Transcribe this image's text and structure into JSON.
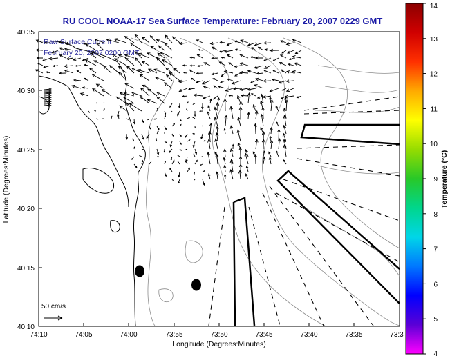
{
  "title": "RU COOL  NOAA-17  Sea Surface Temperature:  February 20, 2007 0229 GMT",
  "overlay": {
    "line1": "Raw Surface Current",
    "line2": "February 20, 2007 0200 GMT"
  },
  "axes": {
    "xlabel": "Longitude (Degrees:Minutes)",
    "ylabel": "Latitude (Degrees:Minutes)",
    "xticks": [
      "74:10",
      "74:05",
      "74:00",
      "73:55",
      "73:50",
      "73:45",
      "73:40",
      "73:35",
      "73:3"
    ],
    "yticks": [
      "40:35",
      "40:30",
      "40:25",
      "40:20",
      "40:15",
      "40:10"
    ]
  },
  "colorbar": {
    "label": "Temperature (°C)",
    "ticks": [
      "14",
      "13",
      "12",
      "11",
      "10",
      "9",
      "8",
      "7",
      "6",
      "5",
      "4"
    ],
    "colors": [
      "#ff00ff",
      "#5a00d6",
      "#0000ff",
      "#0078ff",
      "#00d6e8",
      "#00d68c",
      "#28c828",
      "#96dc00",
      "#ffff00",
      "#ffaa00",
      "#ff3000",
      "#d00000",
      "#8c0000"
    ]
  },
  "scale": {
    "label": "50 cm/s"
  },
  "colors": {
    "title": "#1a1aa6",
    "land_line": "#000000",
    "contour": "#8c8c8c"
  }
}
